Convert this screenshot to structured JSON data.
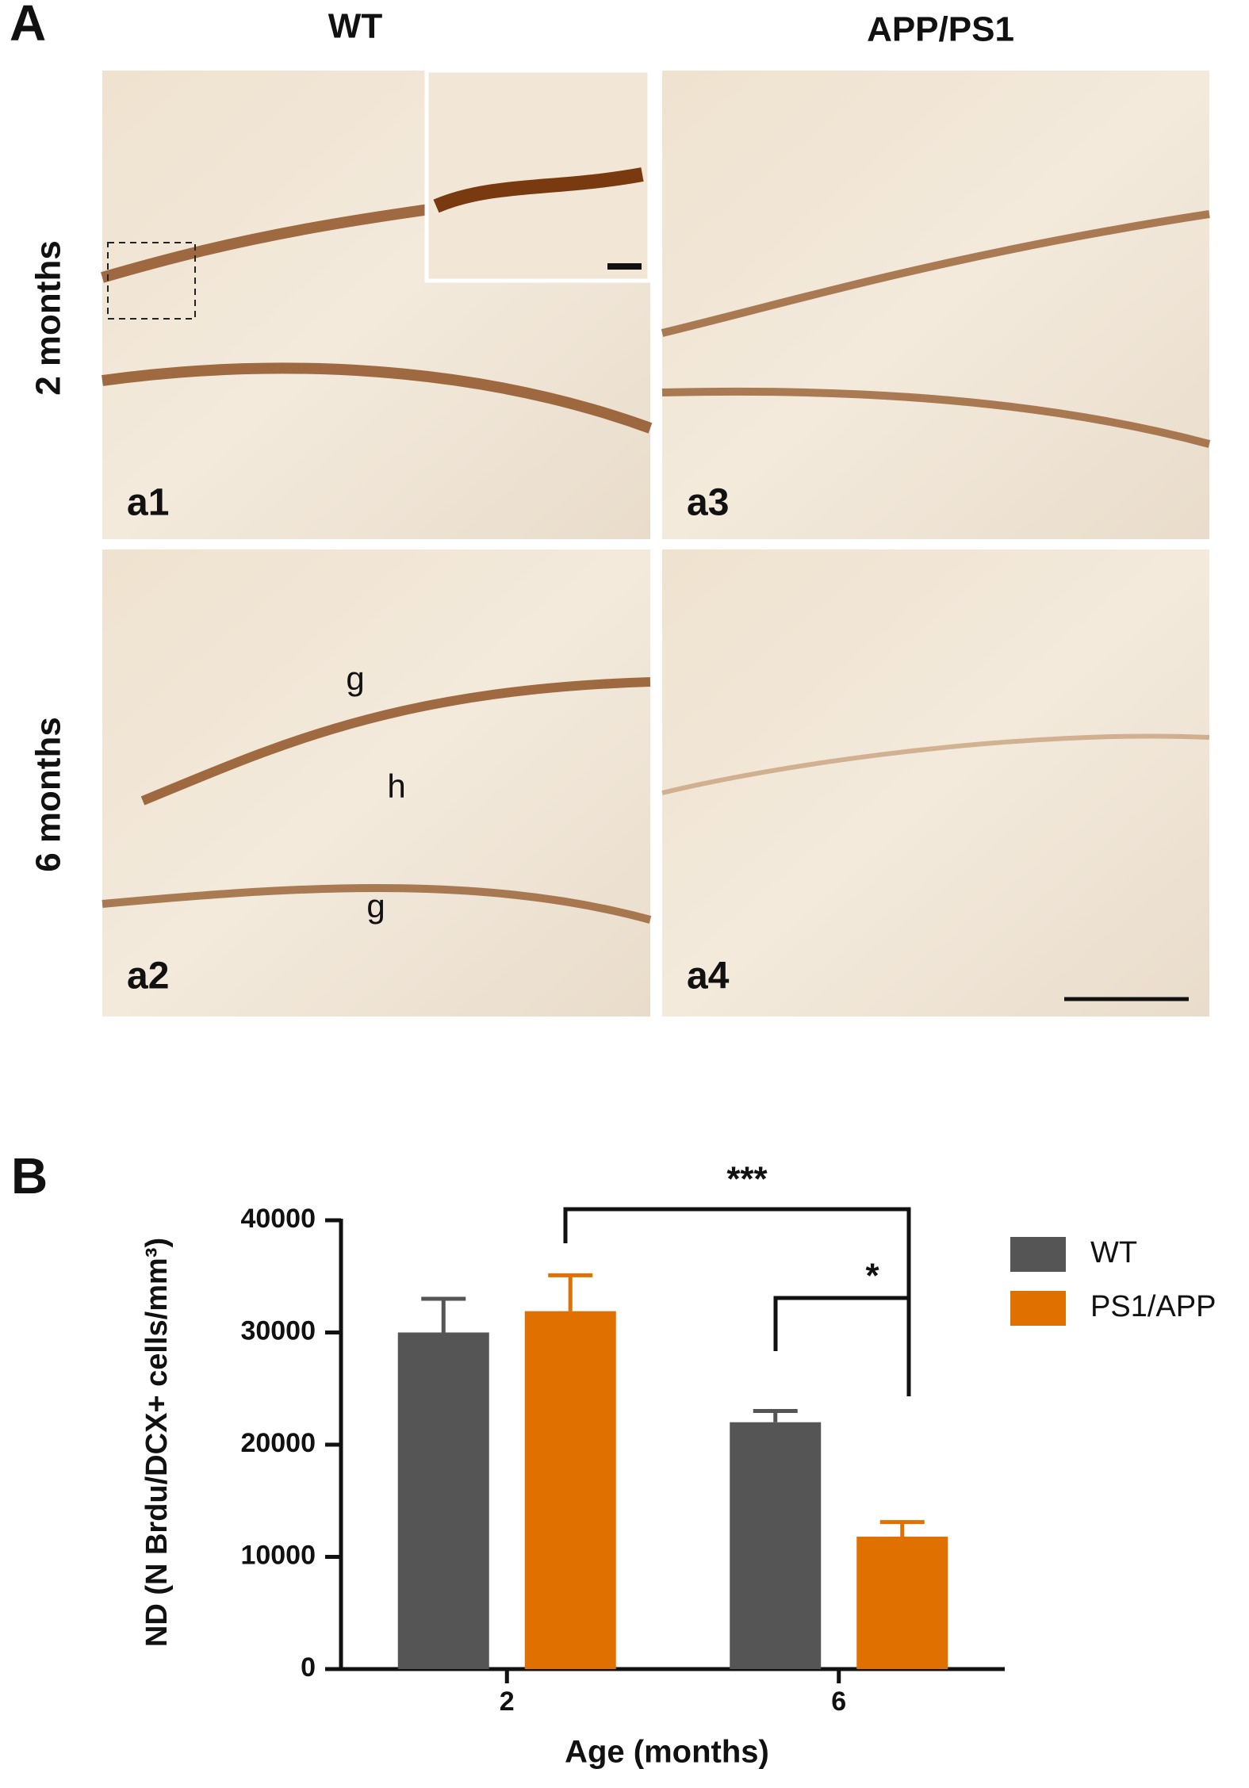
{
  "panel_a": {
    "label": "A",
    "columns": [
      "WT",
      "APP/PS1"
    ],
    "rows": [
      "2 months",
      "6 months"
    ],
    "images": [
      "a1",
      "a3",
      "a2",
      "a4"
    ],
    "regions": [
      "g",
      "h",
      "g"
    ]
  },
  "chart_data": {
    "type": "bar",
    "panel_label": "B",
    "y_label": "ND (N Brdu/DCX+ cells/mm³)",
    "x_label": "Age (months)",
    "categories": [
      "2",
      "6"
    ],
    "series": [
      {
        "name": "WT",
        "color": "#555555",
        "values": [
          30000,
          22000
        ],
        "errors": [
          3000,
          1000
        ]
      },
      {
        "name": "PS1/APP",
        "color": "#e07000",
        "values": [
          31900,
          11800
        ],
        "errors": [
          3200,
          1300
        ]
      }
    ],
    "ylim": [
      0,
      40000
    ],
    "yticks": [
      0,
      10000,
      20000,
      30000,
      40000
    ],
    "annotations": [
      "***",
      "*"
    ]
  }
}
